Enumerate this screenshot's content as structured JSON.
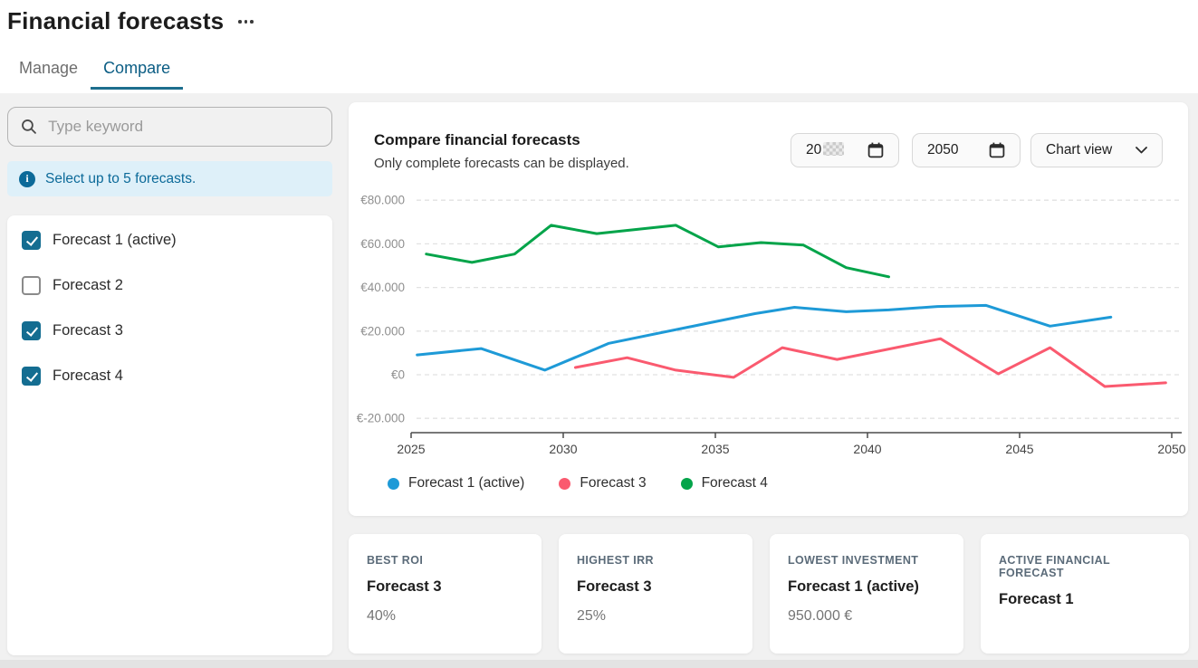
{
  "page": {
    "title": "Financial forecasts"
  },
  "tabs": [
    {
      "label": "Manage",
      "active": false
    },
    {
      "label": "Compare",
      "active": true
    }
  ],
  "icons": {
    "more_options": "ellipsis",
    "search": "magnifier",
    "info": "i",
    "calendar": "calendar",
    "dropdown": "chevron-down",
    "checkbox_check": "check"
  },
  "sidebar": {
    "search_placeholder": "Type keyword",
    "info_banner": "Select up to 5 forecasts.",
    "forecasts": [
      {
        "label": "Forecast 1 (active)",
        "checked": true
      },
      {
        "label": "Forecast 2",
        "checked": false
      },
      {
        "label": "Forecast 3",
        "checked": true
      },
      {
        "label": "Forecast 4",
        "checked": true
      }
    ]
  },
  "chart_card": {
    "title": "Compare financial forecasts",
    "subtitle": "Only complete forecasts can be displayed.",
    "start_year_value": "20",
    "start_year_redacted": true,
    "end_year_value": "2050",
    "view_select_value": "Chart view"
  },
  "chart_data": {
    "type": "line",
    "title": "Compare financial forecasts",
    "grid": "dashed-horizontal",
    "legend_position": "bottom",
    "x_axis": {
      "range": [
        2025,
        2050
      ],
      "ticks": [
        2025,
        2030,
        2035,
        2040,
        2045,
        2050
      ]
    },
    "y_axis": {
      "currency": "EUR",
      "range": [
        -20000,
        80000
      ],
      "tick_values": [
        80000,
        60000,
        40000,
        20000,
        0,
        -20000
      ],
      "tick_labels": [
        "€80.000",
        "€60.000",
        "€40.000",
        "€20.000",
        "€0",
        "€-20.000"
      ]
    },
    "series": [
      {
        "name": "Forecast 1 (active)",
        "color": "#1e9ad7",
        "points": [
          [
            2025.2,
            9100
          ],
          [
            2027.3,
            12000
          ],
          [
            2029.4,
            2100
          ],
          [
            2031.5,
            14400
          ],
          [
            2034.7,
            23500
          ],
          [
            2036.3,
            28000
          ],
          [
            2037.6,
            30900
          ],
          [
            2039.3,
            28900
          ],
          [
            2040.7,
            29700
          ],
          [
            2042.3,
            31300
          ],
          [
            2043.9,
            31800
          ],
          [
            2046.0,
            22300
          ],
          [
            2048.0,
            26400
          ]
        ]
      },
      {
        "name": "Forecast 3",
        "color": "#fa5a6f",
        "points": [
          [
            2030.4,
            3300
          ],
          [
            2032.1,
            7800
          ],
          [
            2033.7,
            2100
          ],
          [
            2035.6,
            -1200
          ],
          [
            2037.2,
            12400
          ],
          [
            2039.0,
            7000
          ],
          [
            2042.4,
            16500
          ],
          [
            2044.3,
            400
          ],
          [
            2046.0,
            12400
          ],
          [
            2047.8,
            -5400
          ],
          [
            2049.8,
            -3700
          ]
        ]
      },
      {
        "name": "Forecast 4",
        "color": "#04a44a",
        "points": [
          [
            2025.5,
            55300
          ],
          [
            2027.0,
            51500
          ],
          [
            2028.4,
            55300
          ],
          [
            2029.6,
            68500
          ],
          [
            2031.1,
            64700
          ],
          [
            2033.7,
            68500
          ],
          [
            2035.1,
            58600
          ],
          [
            2036.5,
            60600
          ],
          [
            2037.9,
            59400
          ],
          [
            2039.3,
            49100
          ],
          [
            2040.7,
            44900
          ]
        ]
      }
    ]
  },
  "summary_cards": [
    {
      "label": "BEST ROI",
      "name": "Forecast 3",
      "value": "40%"
    },
    {
      "label": "HIGHEST IRR",
      "name": "Forecast 3",
      "value": "25%"
    },
    {
      "label": "LOWEST INVESTMENT",
      "name": "Forecast 1 (active)",
      "value": "950.000 €"
    },
    {
      "label": "ACTIVE FINANCIAL FORECAST",
      "name": "Forecast 1",
      "value": ""
    }
  ],
  "colors": {
    "accent": "#0c6a99",
    "tab_active": "#0b5d84",
    "checkbox": "#146d91",
    "info_banner_bg": "#def0f9",
    "series_forecast1": "#1e9ad7",
    "series_forecast3": "#fa5a6f",
    "series_forecast4": "#04a44a"
  }
}
